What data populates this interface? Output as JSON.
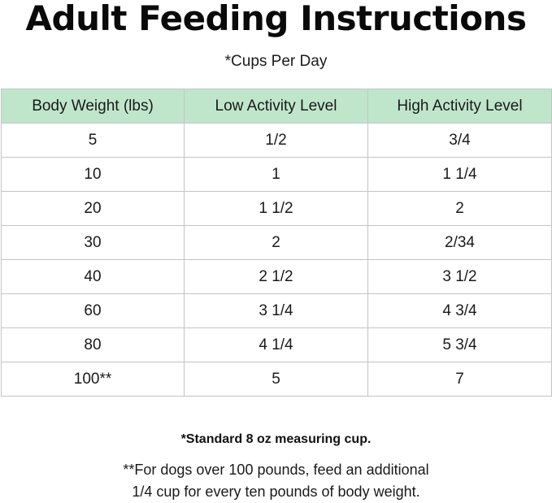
{
  "title": "Adult Feeding Instructions",
  "subtitle": "*Cups Per Day",
  "table": {
    "headers": [
      "Body Weight (lbs)",
      "Low Activity Level",
      "High Activity Level"
    ],
    "rows": [
      [
        "5",
        "1/2",
        "3/4"
      ],
      [
        "10",
        "1",
        "1 1/4"
      ],
      [
        "20",
        "1 1/2",
        "2"
      ],
      [
        "30",
        "2",
        "2/34"
      ],
      [
        "40",
        "2 1/2",
        "3 1/2"
      ],
      [
        "60",
        "3 1/4",
        "4 3/4"
      ],
      [
        "80",
        "4 1/4",
        "5 3/4"
      ],
      [
        "100**",
        "5",
        "7"
      ]
    ]
  },
  "notes": {
    "standard_cup": "*Standard 8 oz measuring cup.",
    "large_dogs_line1": "**For dogs over 100 pounds, feed an additional",
    "large_dogs_line2": "1/4 cup for every ten pounds of body weight."
  },
  "colors": {
    "header_bg": "#bfe6cb",
    "grid_line": "#c4c4c4"
  }
}
